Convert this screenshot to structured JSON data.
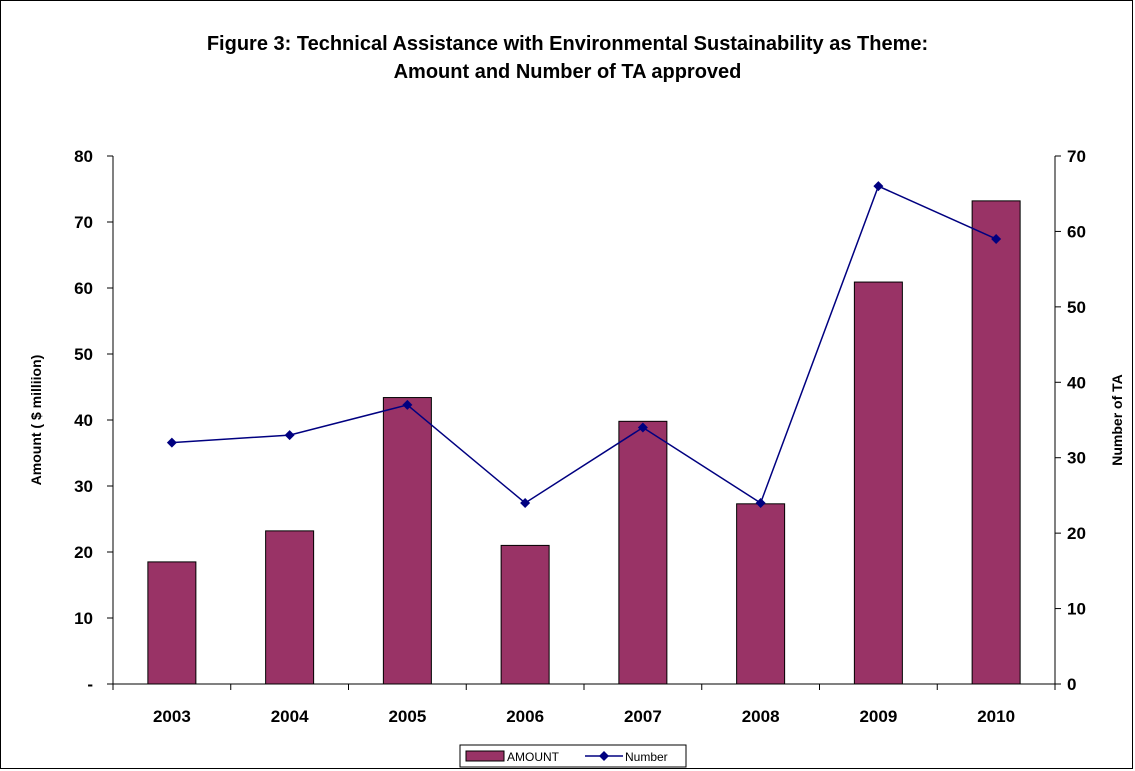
{
  "chart_data": {
    "type": "bar",
    "title": "Figure 3: Technical Assistance with Environmental Sustainability as Theme:",
    "subtitle": "Amount and Number of TA approved",
    "categories": [
      "2003",
      "2004",
      "2005",
      "2006",
      "2007",
      "2008",
      "2009",
      "2010"
    ],
    "series": [
      {
        "name": "AMOUNT",
        "type": "bar",
        "axis": "left",
        "color": "#993366",
        "values": [
          18.5,
          23.2,
          43.4,
          21.0,
          39.8,
          27.3,
          60.9,
          73.2
        ]
      },
      {
        "name": "Number",
        "type": "line",
        "axis": "right",
        "color": "#000080",
        "values": [
          32,
          33,
          37,
          24,
          34,
          24,
          66,
          59
        ]
      }
    ],
    "ylabel": "Amount ( $ milliion)",
    "y2label": "Number of TA",
    "ylim": [
      0,
      80
    ],
    "y2lim": [
      0,
      70
    ],
    "yticks": [
      "-",
      "10",
      "20",
      "30",
      "40",
      "50",
      "60",
      "70",
      "80"
    ],
    "y2ticks": [
      "0",
      "10",
      "20",
      "30",
      "40",
      "50",
      "60",
      "70"
    ],
    "grid": false,
    "legend_position": "bottom"
  }
}
